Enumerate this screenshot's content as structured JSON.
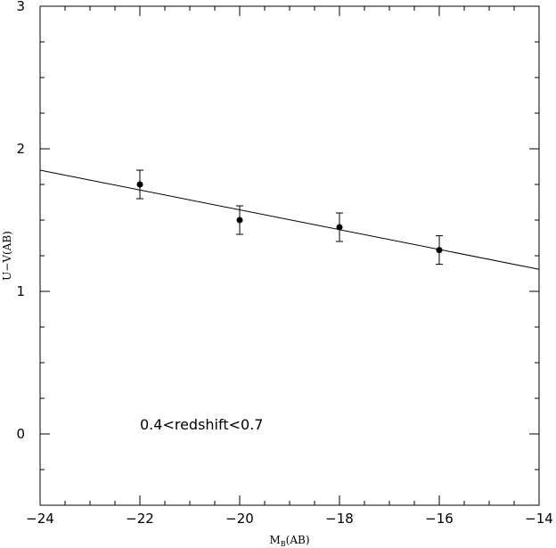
{
  "chart_data": {
    "type": "scatter",
    "xlabel_main": "M",
    "xlabel_sub": "B",
    "xlabel_suffix": "(AB)",
    "ylabel": "U−V(AB)",
    "xlim": [
      -24,
      -14
    ],
    "ylim": [
      -0.5,
      3
    ],
    "x_ticks_major": [
      -24,
      -22,
      -20,
      -18,
      -16,
      -14
    ],
    "x_tick_labels": [
      "−24",
      "−22",
      "−20",
      "−18",
      "−16",
      "−14"
    ],
    "y_ticks_major": [
      0,
      1,
      2,
      3
    ],
    "y_tick_labels": [
      "0",
      "1",
      "2",
      "3"
    ],
    "x_minor_step": 0.5,
    "y_minor_step": 0.25,
    "points": [
      {
        "x": -22,
        "y": 1.75,
        "err": 0.1
      },
      {
        "x": -20,
        "y": 1.5,
        "err": 0.1
      },
      {
        "x": -18,
        "y": 1.45,
        "err": 0.1
      },
      {
        "x": -16,
        "y": 1.29,
        "err": 0.1
      }
    ],
    "fit_line": {
      "x": [
        -24,
        -14
      ],
      "y": [
        1.85,
        1.155
      ]
    },
    "annotation": {
      "text": "0.4<redshift<0.7",
      "x": -22,
      "y": 0.03
    }
  }
}
